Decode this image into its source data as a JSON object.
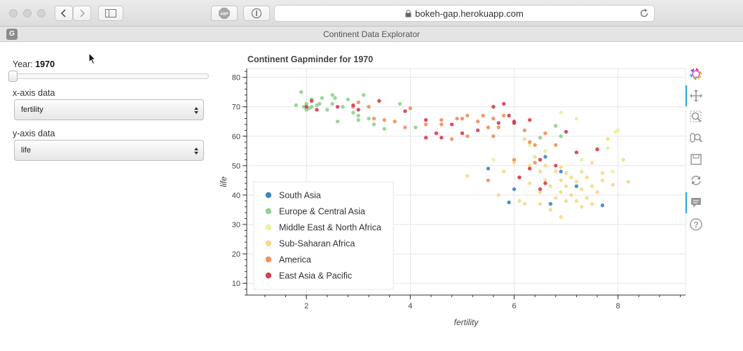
{
  "browser": {
    "url": "bokeh-gap.herokuapp.com",
    "tab_title": "Continent Data Explorator",
    "tab_icon_letter": "G",
    "abp_label": "ABP"
  },
  "controls": {
    "year_label": "Year:",
    "year_value": "1970",
    "year_slider_fraction": 0.0,
    "x_axis_label": "x-axis data",
    "x_axis_value": "fertility",
    "y_axis_label": "y-axis data",
    "y_axis_value": "life"
  },
  "toolbar_icons": [
    "bokeh-logo-icon",
    "pan-icon",
    "box-zoom-icon",
    "wheel-zoom-icon",
    "save-icon",
    "reset-icon",
    "hover-icon",
    "help-icon"
  ],
  "chart_data": {
    "type": "scatter",
    "title": "Continent Gapminder for 1970",
    "xlabel": "fertility",
    "ylabel": "life",
    "xlim": [
      0.85,
      9.3
    ],
    "ylim": [
      6,
      83
    ],
    "x_ticks": [
      2,
      4,
      6,
      8
    ],
    "y_ticks": [
      10,
      20,
      30,
      40,
      50,
      60,
      70,
      80
    ],
    "grid": true,
    "legend_position": "bottom-left",
    "series": [
      {
        "name": "South Asia",
        "color": "#3b86c1",
        "points": [
          [
            5.5,
            49
          ],
          [
            6.0,
            42
          ],
          [
            6.6,
            53
          ],
          [
            6.7,
            37
          ],
          [
            6.9,
            48
          ],
          [
            7.2,
            43
          ],
          [
            7.7,
            36.5
          ],
          [
            5.9,
            37.5
          ]
        ]
      },
      {
        "name": "Europe & Central Asia",
        "color": "#8fd28a",
        "points": [
          [
            1.8,
            70.5
          ],
          [
            1.9,
            75
          ],
          [
            1.95,
            70
          ],
          [
            2.0,
            69
          ],
          [
            2.0,
            71
          ],
          [
            2.05,
            69.5
          ],
          [
            2.1,
            70
          ],
          [
            2.1,
            72.5
          ],
          [
            2.2,
            70.5
          ],
          [
            2.25,
            71
          ],
          [
            2.3,
            73
          ],
          [
            2.4,
            69
          ],
          [
            2.5,
            71
          ],
          [
            2.5,
            74
          ],
          [
            2.55,
            73
          ],
          [
            2.6,
            65
          ],
          [
            2.7,
            70
          ],
          [
            2.8,
            72.5
          ],
          [
            2.9,
            68
          ],
          [
            3.0,
            67
          ],
          [
            3.0,
            65.5
          ],
          [
            3.1,
            74
          ],
          [
            3.2,
            66
          ],
          [
            3.3,
            64
          ],
          [
            3.5,
            62.5
          ],
          [
            3.8,
            71
          ],
          [
            4.1,
            63
          ],
          [
            6.8,
            63.5
          ],
          [
            6.5,
            59.5
          ],
          [
            6.9,
            60
          ]
        ]
      },
      {
        "name": "Middle East & North Africa",
        "color": "#e6f29a",
        "points": [
          [
            5.6,
            52
          ],
          [
            6.3,
            57
          ],
          [
            6.6,
            55
          ],
          [
            6.9,
            68
          ],
          [
            7.2,
            66
          ],
          [
            7.3,
            52
          ],
          [
            7.6,
            56
          ],
          [
            7.8,
            56
          ],
          [
            7.95,
            61.5
          ],
          [
            8.0,
            62
          ],
          [
            7.9,
            48
          ]
        ]
      },
      {
        "name": "Sub-Saharan Africa",
        "color": "#f6d98b",
        "points": [
          [
            5.1,
            46.5
          ],
          [
            5.7,
            40
          ],
          [
            5.8,
            48
          ],
          [
            6.0,
            51
          ],
          [
            6.1,
            38
          ],
          [
            6.1,
            46
          ],
          [
            6.2,
            37
          ],
          [
            6.3,
            44
          ],
          [
            6.3,
            50
          ],
          [
            6.4,
            53
          ],
          [
            6.5,
            37
          ],
          [
            6.5,
            41
          ],
          [
            6.6,
            45
          ],
          [
            6.6,
            50
          ],
          [
            6.7,
            35
          ],
          [
            6.7,
            43
          ],
          [
            6.8,
            39
          ],
          [
            6.8,
            48
          ],
          [
            6.9,
            32.5
          ],
          [
            6.9,
            41
          ],
          [
            6.9,
            45
          ],
          [
            6.9,
            49.5
          ],
          [
            7.0,
            38
          ],
          [
            7.0,
            43
          ],
          [
            7.0,
            47.5
          ],
          [
            7.1,
            40
          ],
          [
            7.1,
            46
          ],
          [
            7.2,
            38
          ],
          [
            7.2,
            44.5
          ],
          [
            7.3,
            36
          ],
          [
            7.3,
            42
          ],
          [
            7.3,
            48
          ],
          [
            7.4,
            39
          ],
          [
            7.4,
            46
          ],
          [
            7.5,
            37
          ],
          [
            7.5,
            43
          ],
          [
            7.5,
            51
          ],
          [
            7.6,
            41
          ],
          [
            7.7,
            45
          ],
          [
            7.7,
            47.5
          ],
          [
            7.9,
            43.5
          ],
          [
            8.1,
            52
          ],
          [
            8.2,
            44.5
          ],
          [
            7.8,
            59
          ],
          [
            6.2,
            59
          ],
          [
            6.5,
            48
          ]
        ]
      },
      {
        "name": "America",
        "color": "#f28e5c",
        "points": [
          [
            2.9,
            70
          ],
          [
            3.0,
            71.5
          ],
          [
            3.2,
            70
          ],
          [
            3.3,
            66
          ],
          [
            3.5,
            65.5
          ],
          [
            3.7,
            65
          ],
          [
            3.9,
            63
          ],
          [
            4.0,
            69.5
          ],
          [
            4.3,
            64
          ],
          [
            4.6,
            65.5
          ],
          [
            4.6,
            64
          ],
          [
            4.8,
            59
          ],
          [
            4.9,
            66
          ],
          [
            5.0,
            66
          ],
          [
            5.1,
            67
          ],
          [
            5.1,
            60
          ],
          [
            5.3,
            65
          ],
          [
            5.4,
            67
          ],
          [
            5.5,
            63
          ],
          [
            5.6,
            60
          ],
          [
            5.6,
            66
          ],
          [
            5.7,
            63
          ],
          [
            5.8,
            67
          ],
          [
            6.0,
            64.5
          ],
          [
            6.2,
            62
          ],
          [
            6.3,
            58
          ],
          [
            6.4,
            57
          ],
          [
            6.4,
            51
          ],
          [
            6.6,
            61
          ],
          [
            6.8,
            57
          ],
          [
            6.0,
            52
          ],
          [
            5.5,
            45
          ]
        ]
      },
      {
        "name": "East Asia & Pacific",
        "color": "#d43d4f",
        "points": [
          [
            2.0,
            70
          ],
          [
            2.1,
            72
          ],
          [
            2.2,
            69
          ],
          [
            2.6,
            70
          ],
          [
            2.9,
            70.5
          ],
          [
            3.0,
            69
          ],
          [
            3.4,
            72
          ],
          [
            3.9,
            68.5
          ],
          [
            4.3,
            65.5
          ],
          [
            4.3,
            59.5
          ],
          [
            4.5,
            61
          ],
          [
            4.6,
            59.5
          ],
          [
            4.8,
            64
          ],
          [
            5.0,
            61
          ],
          [
            5.3,
            62
          ],
          [
            5.6,
            70
          ],
          [
            5.7,
            64.5
          ],
          [
            5.8,
            71
          ],
          [
            5.9,
            67
          ],
          [
            6.0,
            65
          ],
          [
            6.0,
            64.5
          ],
          [
            6.1,
            46
          ],
          [
            6.3,
            65.5
          ],
          [
            6.5,
            52
          ],
          [
            6.5,
            42
          ],
          [
            6.6,
            44
          ],
          [
            6.8,
            50
          ],
          [
            7.0,
            61.5
          ],
          [
            7.2,
            54.5
          ],
          [
            7.6,
            55.5
          ],
          [
            6.3,
            49
          ]
        ]
      }
    ]
  }
}
